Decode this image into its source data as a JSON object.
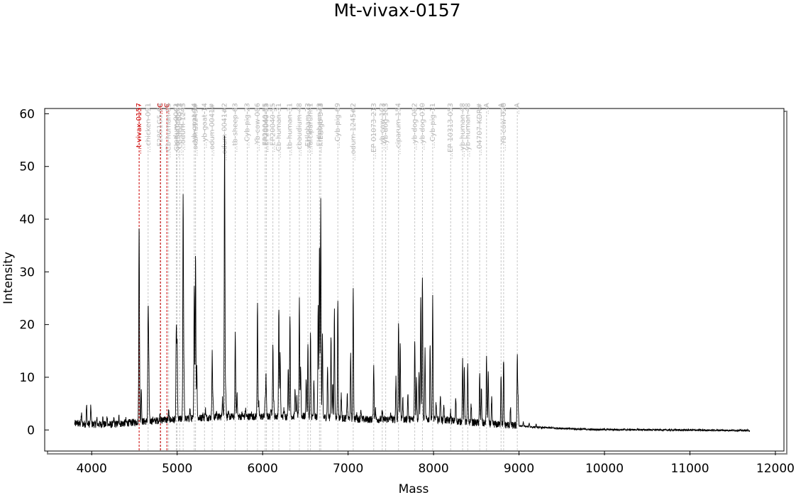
{
  "chart_data": {
    "type": "line",
    "title": "Mt-vivax-0157",
    "xlabel": "Mass",
    "ylabel": "Intensity",
    "xlim": [
      3450,
      12100
    ],
    "ylim": [
      -4,
      61
    ],
    "xticks": [
      4000,
      5000,
      6000,
      7000,
      8000,
      9000,
      10000,
      11000,
      12000
    ],
    "yticks": [
      0,
      10,
      20,
      30,
      40,
      50,
      60
    ],
    "spectrum": {
      "range": [
        3800,
        11700
      ],
      "baseline": [
        [
          3800,
          1.2
        ],
        [
          4200,
          1.0
        ],
        [
          4600,
          1.6
        ],
        [
          5500,
          2.5
        ],
        [
          6500,
          2.6
        ],
        [
          7200,
          2.0
        ],
        [
          8000,
          2.0
        ],
        [
          8800,
          1.0
        ],
        [
          9200,
          0.5
        ],
        [
          9800,
          0.1
        ],
        [
          11700,
          -0.1
        ]
      ],
      "peaks": [
        [
          3830,
          1.5
        ],
        [
          3880,
          3.0
        ],
        [
          3940,
          4.6
        ],
        [
          3990,
          4.5
        ],
        [
          4060,
          2.0
        ],
        [
          4130,
          2.2
        ],
        [
          4180,
          2.5
        ],
        [
          4260,
          2.0
        ],
        [
          4320,
          2.5
        ],
        [
          4400,
          1.8
        ],
        [
          4555,
          39.5
        ],
        [
          4580,
          8.0
        ],
        [
          4660,
          22.0
        ],
        [
          4668,
          12.5
        ],
        [
          4720,
          2.0
        ],
        [
          4800,
          3.0
        ],
        [
          4850,
          2.5
        ],
        [
          4900,
          3.5
        ],
        [
          4990,
          19.5
        ],
        [
          5000,
          16.0
        ],
        [
          5070,
          44.5
        ],
        [
          5080,
          10.0
        ],
        [
          5150,
          4.0
        ],
        [
          5200,
          28.0
        ],
        [
          5215,
          33.5
        ],
        [
          5230,
          12.0
        ],
        [
          5300,
          3.0
        ],
        [
          5330,
          4.0
        ],
        [
          5410,
          14.5
        ],
        [
          5420,
          5.0
        ],
        [
          5460,
          3.5
        ],
        [
          5530,
          6.0
        ],
        [
          5555,
          57.5
        ],
        [
          5568,
          8.0
        ],
        [
          5600,
          3.0
        ],
        [
          5680,
          18.0
        ],
        [
          5700,
          7.0
        ],
        [
          5760,
          3.0
        ],
        [
          5800,
          4.0
        ],
        [
          5870,
          3.0
        ],
        [
          5940,
          24.5
        ],
        [
          5955,
          5.0
        ],
        [
          6030,
          6.0
        ],
        [
          6040,
          10.0
        ],
        [
          6100,
          4.5
        ],
        [
          6120,
          15.5
        ],
        [
          6130,
          5.0
        ],
        [
          6190,
          23.5
        ],
        [
          6205,
          14.5
        ],
        [
          6250,
          4.0
        ],
        [
          6300,
          12.0
        ],
        [
          6320,
          22.0
        ],
        [
          6380,
          8.0
        ],
        [
          6400,
          6.0
        ],
        [
          6430,
          24.5
        ],
        [
          6445,
          12.0
        ],
        [
          6510,
          10.0
        ],
        [
          6530,
          16.0
        ],
        [
          6560,
          18.0
        ],
        [
          6600,
          9.0
        ],
        [
          6650,
          24.0
        ],
        [
          6665,
          35.0
        ],
        [
          6680,
          44.0
        ],
        [
          6700,
          18.0
        ],
        [
          6760,
          12.0
        ],
        [
          6800,
          18.0
        ],
        [
          6820,
          9.0
        ],
        [
          6840,
          22.5
        ],
        [
          6880,
          25.0
        ],
        [
          6920,
          7.0
        ],
        [
          6990,
          7.0
        ],
        [
          7030,
          14.0
        ],
        [
          7060,
          27.0
        ],
        [
          7100,
          3.0
        ],
        [
          7150,
          4.0
        ],
        [
          7300,
          12.5
        ],
        [
          7320,
          4.0
        ],
        [
          7400,
          3.5
        ],
        [
          7500,
          3.0
        ],
        [
          7560,
          10.0
        ],
        [
          7590,
          20.5
        ],
        [
          7610,
          16.0
        ],
        [
          7640,
          6.0
        ],
        [
          7700,
          7.0
        ],
        [
          7780,
          17.5
        ],
        [
          7800,
          10.0
        ],
        [
          7830,
          11.5
        ],
        [
          7850,
          25.0
        ],
        [
          7870,
          29.5
        ],
        [
          7900,
          15.0
        ],
        [
          7960,
          16.0
        ],
        [
          7990,
          25.0
        ],
        [
          8030,
          5.0
        ],
        [
          8080,
          7.0
        ],
        [
          8120,
          5.0
        ],
        [
          8200,
          3.5
        ],
        [
          8260,
          6.0
        ],
        [
          8340,
          13.5
        ],
        [
          8360,
          12.0
        ],
        [
          8400,
          12.0
        ],
        [
          8440,
          5.0
        ],
        [
          8540,
          10.5
        ],
        [
          8560,
          8.0
        ],
        [
          8620,
          13.5
        ],
        [
          8640,
          11.0
        ],
        [
          8680,
          6.0
        ],
        [
          8790,
          10.5
        ],
        [
          8820,
          13.5
        ],
        [
          8900,
          4.0
        ],
        [
          8980,
          13.5
        ],
        [
          8990,
          6.0
        ],
        [
          9050,
          1.5
        ],
        [
          9120,
          1.3
        ],
        [
          9200,
          1.0
        ]
      ]
    },
    "references": [
      {
        "label": "...t-vivax-0157",
        "mass": 4555,
        "highlight": true
      },
      {
        "label": "...chicken-091",
        "mass": 4660,
        "highlight": false
      },
      {
        "label": "...F28S1G5-64",
        "mass": 4800,
        "highlight": false
      },
      {
        "label": "...C",
        "mass": 4805,
        "highlight": true
      },
      {
        "label": "...C",
        "mass": 4880,
        "highlight": true
      },
      {
        "label": "...Cb-human-95",
        "mass": 4900,
        "highlight": false
      },
      {
        "label": "...odum-0041",
        "mass": 4990,
        "highlight": false
      },
      {
        "label": "...Cb-human-94",
        "mass": 5000,
        "highlight": false
      },
      {
        "label": "...Cb-dog-0053",
        "mass": 5030,
        "highlight": false
      },
      {
        "label": "...odum-1245",
        "mass": 5070,
        "highlight": false
      },
      {
        "label": "...yb-goat-14",
        "mass": 5200,
        "highlight": false
      },
      {
        "label": "...odum-1245#",
        "mass": 5215,
        "highlight": false
      },
      {
        "label": "...yb-goat-14",
        "mass": 5320,
        "highlight": false
      },
      {
        "label": "...odum-0041#",
        "mass": 5410,
        "highlight": false
      },
      {
        "label": "...odum-0041#2",
        "mass": 5555,
        "highlight": false
      },
      {
        "label": "...tb-sheep-63",
        "mass": 5680,
        "highlight": false
      },
      {
        "label": "...Cyb-pig-23",
        "mass": 5820,
        "highlight": false
      },
      {
        "label": "...Yb-cow-086",
        "mass": 5940,
        "highlight": false
      },
      {
        "label": "...EP20040-55",
        "mass": 6030,
        "highlight": false
      },
      {
        "label": "...EP20040-55",
        "mass": 6045,
        "highlight": false
      },
      {
        "label": "...EP20040-55",
        "mass": 6120,
        "highlight": false
      },
      {
        "label": "...Cb-human-31",
        "mass": 6190,
        "highlight": false
      },
      {
        "label": "...tb-human-31",
        "mass": 6320,
        "highlight": false
      },
      {
        "label": "...cbaudium-48",
        "mass": 6430,
        "highlight": false
      },
      {
        "label": "...EHlgbam-73",
        "mass": 6530,
        "highlight": false
      },
      {
        "label": "...falciparum-1",
        "mass": 6560,
        "highlight": false
      },
      {
        "label": "...EHlgbam-73",
        "mass": 6665,
        "highlight": false
      },
      {
        "label": "...EHlgb-343",
        "mass": 6680,
        "highlight": false
      },
      {
        "label": "...Cyb-pig-69",
        "mass": 6880,
        "highlight": false
      },
      {
        "label": "...odum-1245#2",
        "mass": 7060,
        "highlight": false
      },
      {
        "label": "...EP 01073-213",
        "mass": 7300,
        "highlight": false
      },
      {
        "label": "...yb-cow-103",
        "mass": 7400,
        "highlight": false
      },
      {
        "label": "...yb-dog-103",
        "mass": 7440,
        "highlight": false
      },
      {
        "label": "...ciparum-154",
        "mass": 7590,
        "highlight": false
      },
      {
        "label": "...yb-dog-082",
        "mass": 7780,
        "highlight": false
      },
      {
        "label": "...yb-dog-010",
        "mass": 7870,
        "highlight": false
      },
      {
        "label": "...Cyb-pig-11",
        "mass": 7990,
        "highlight": false
      },
      {
        "label": "...EP 10313-053",
        "mass": 8200,
        "highlight": false
      },
      {
        "label": "...yb-human-48",
        "mass": 8340,
        "highlight": false
      },
      {
        "label": "...yb-human-48",
        "mass": 8400,
        "highlight": false
      },
      {
        "label": "...04707-KDR#",
        "mass": 8540,
        "highlight": false
      },
      {
        "label": "...A",
        "mass": 8620,
        "highlight": false
      },
      {
        "label": "...A",
        "mass": 8790,
        "highlight": false
      },
      {
        "label": "...Yb-cow-026",
        "mass": 8820,
        "highlight": false
      },
      {
        "label": "...A",
        "mass": 8980,
        "highlight": false
      }
    ]
  }
}
